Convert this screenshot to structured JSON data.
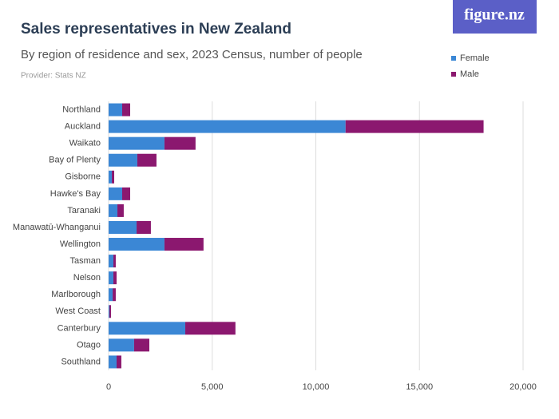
{
  "chart_data": {
    "type": "stacked-barh",
    "title": "Sales representatives in New Zealand",
    "subtitle": "By region of residence and sex, 2023 Census, number of people",
    "provider": "Provider: Stats NZ",
    "logo": "figure.nz",
    "categories": [
      "Northland",
      "Auckland",
      "Waikato",
      "Bay of Plenty",
      "Gisborne",
      "Hawke's Bay",
      "Taranaki",
      "Manawatū-Whanganui",
      "Wellington",
      "Tasman",
      "Nelson",
      "Marlborough",
      "West Coast",
      "Canterbury",
      "Otago",
      "Southland"
    ],
    "series": [
      {
        "name": "Female",
        "color": "#3b87d5",
        "values": [
          655,
          11435,
          2695,
          1385,
          155,
          655,
          425,
          1350,
          2695,
          230,
          230,
          195,
          40,
          3700,
          1230,
          385
        ]
      },
      {
        "name": "Male",
        "color": "#8b186f",
        "values": [
          385,
          6660,
          1500,
          925,
          115,
          385,
          305,
          690,
          1885,
          115,
          155,
          150,
          75,
          2420,
          735,
          230
        ]
      }
    ],
    "xlim": [
      0,
      20000
    ],
    "xticks": [
      0,
      {
        "value": 5000,
        "label": "5,000"
      },
      {
        "value": 10000,
        "label": "10,000"
      },
      {
        "value": 15000,
        "label": "15,000"
      },
      {
        "value": 20000,
        "label": "20,000"
      }
    ],
    "grid": true,
    "legend": "top-right"
  }
}
